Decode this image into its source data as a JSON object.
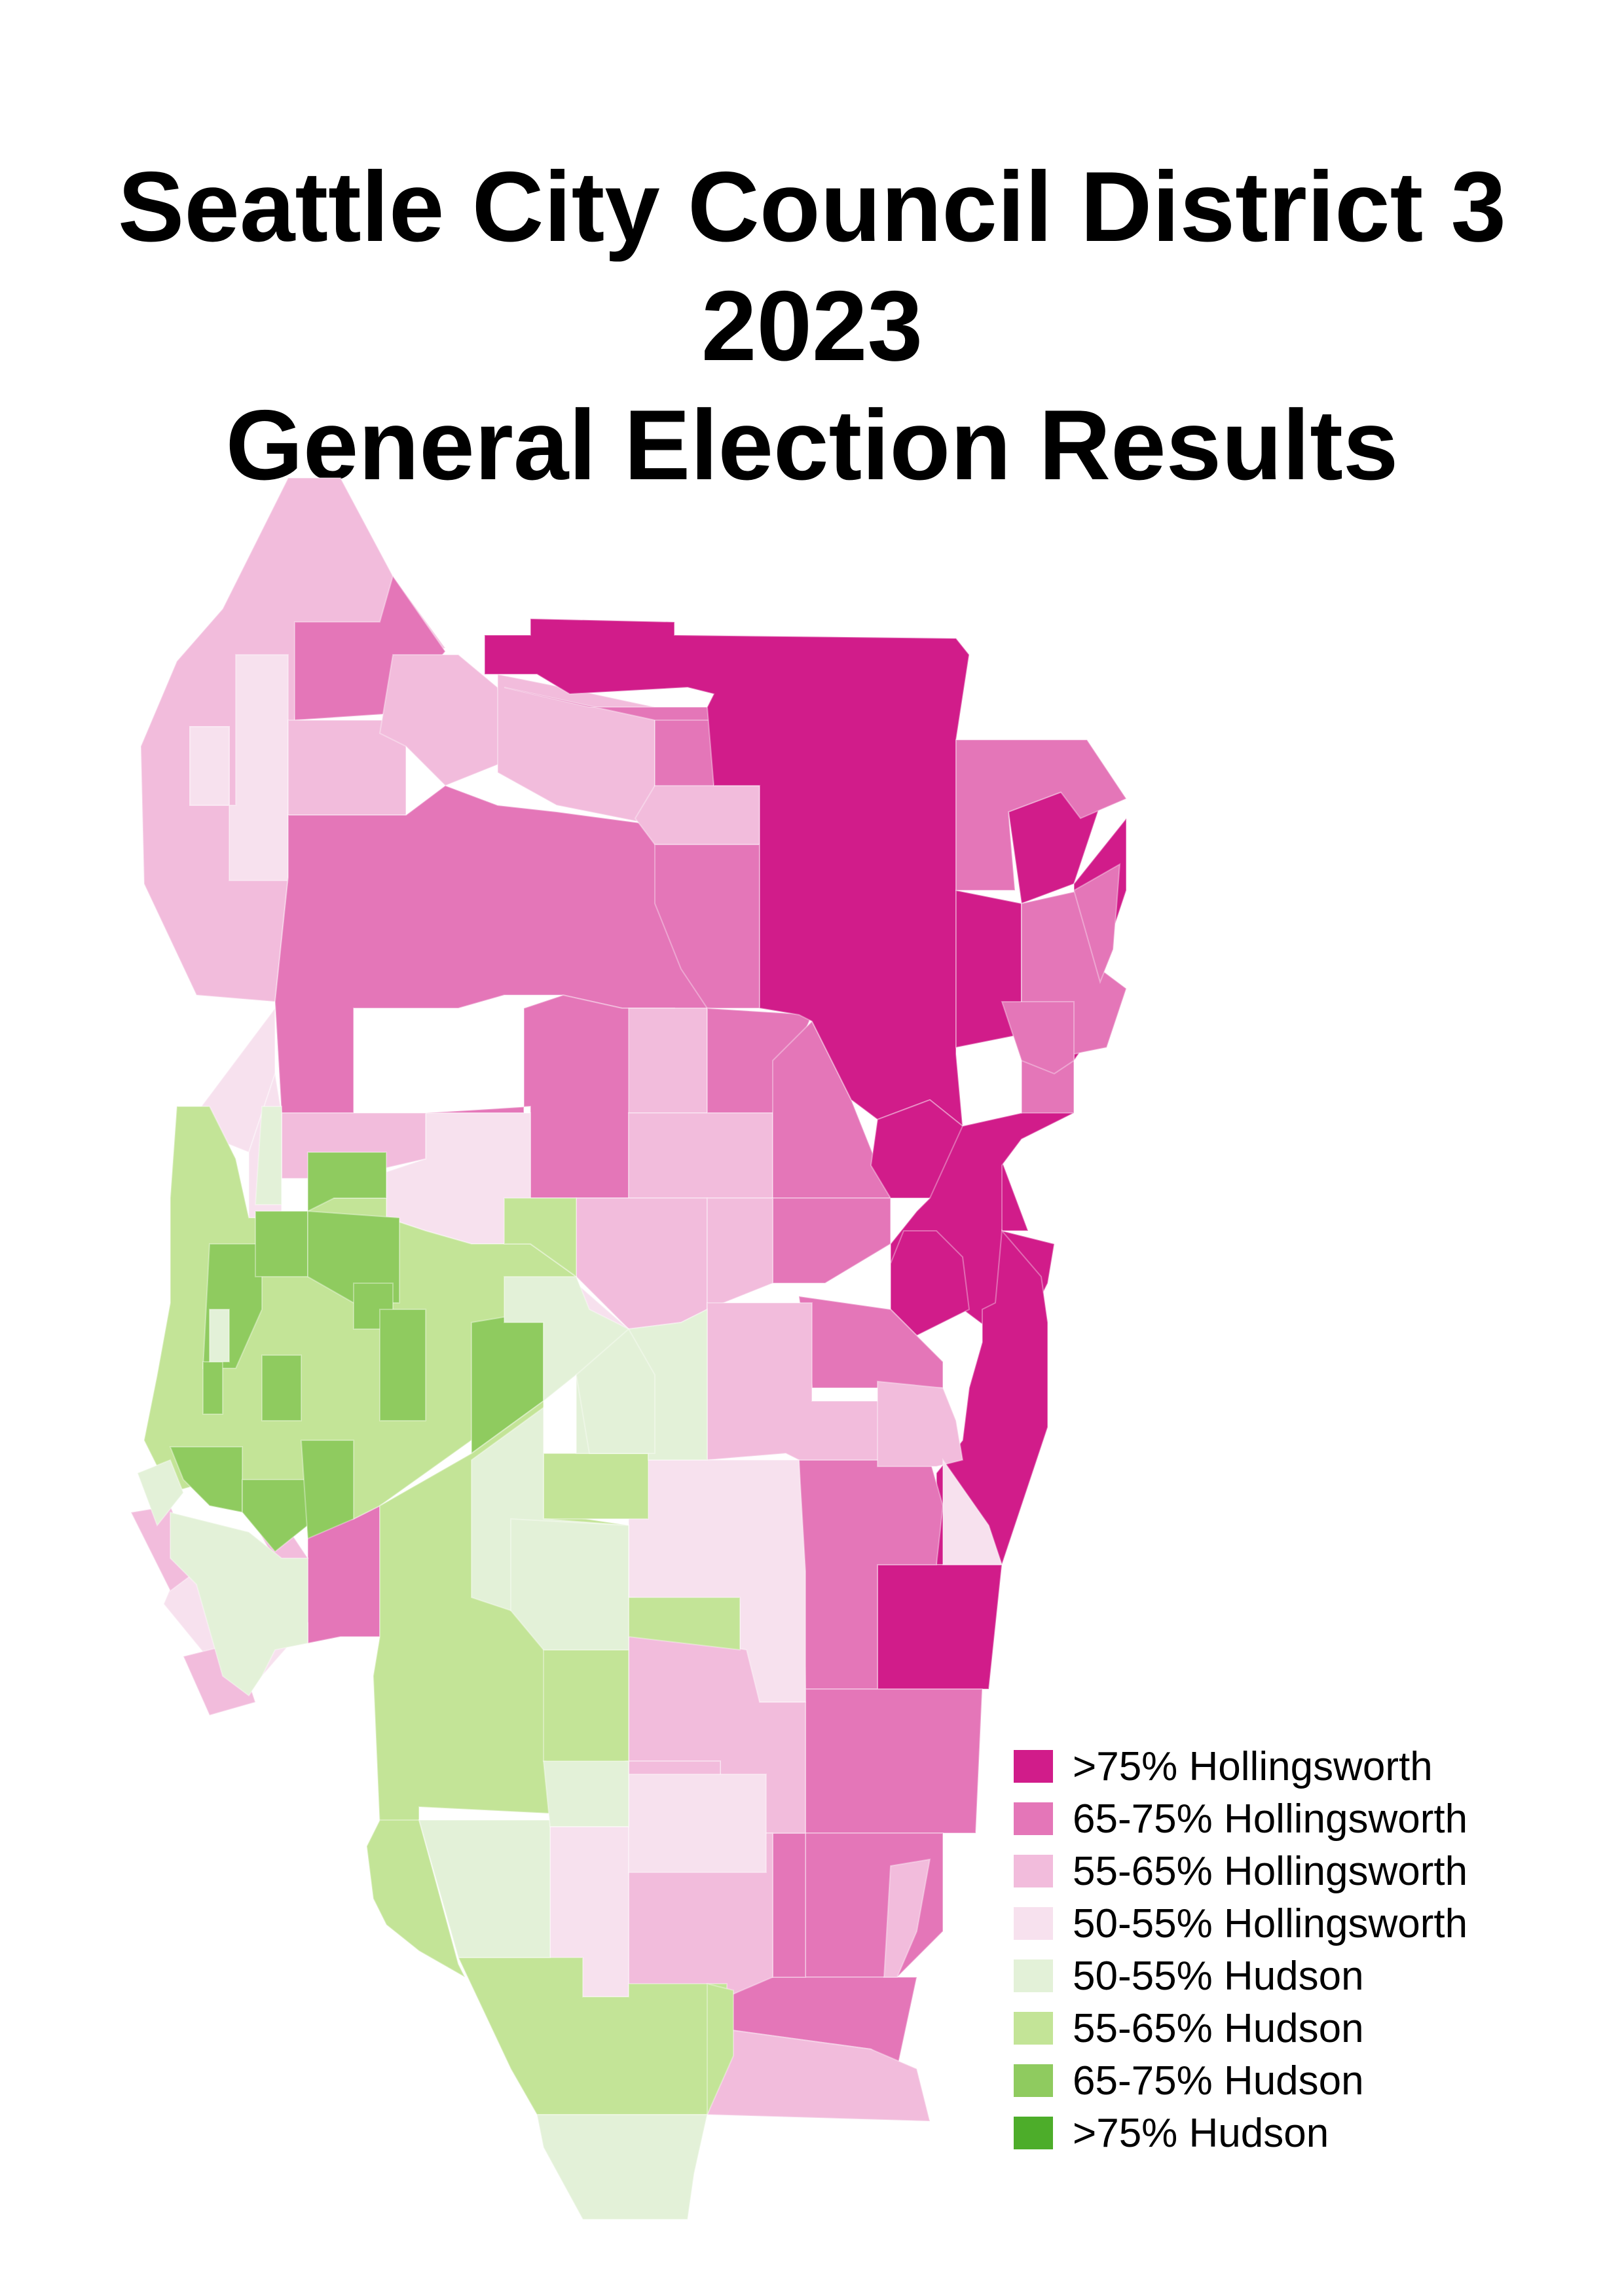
{
  "title": {
    "line1": "Seattle City Council District 3 2023",
    "line2": "General Election Results"
  },
  "colors": {
    "h75": "#d11c8a",
    "h65": "#e476b8",
    "h55": "#f2bcdc",
    "h50": "#f7e1ee",
    "d50": "#e3f1d8",
    "d55": "#c3e497",
    "d65": "#8fcb5f",
    "d75": "#4dad2a"
  },
  "legend": [
    {
      "label": ">75% Hollingsworth",
      "color": "#d11c8a"
    },
    {
      "label": "65-75% Hollingsworth",
      "color": "#e476b8"
    },
    {
      "label": "55-65% Hollingsworth",
      "color": "#f2bcdc"
    },
    {
      "label": "50-55% Hollingsworth",
      "color": "#f7e1ee"
    },
    {
      "label": "50-55% Hudson",
      "color": "#e3f1d8"
    },
    {
      "label": "55-65% Hudson",
      "color": "#c3e497"
    },
    {
      "label": "65-75% Hudson",
      "color": "#8fcb5f"
    },
    {
      "label": ">75% Hudson",
      "color": "#4dad2a"
    }
  ]
}
